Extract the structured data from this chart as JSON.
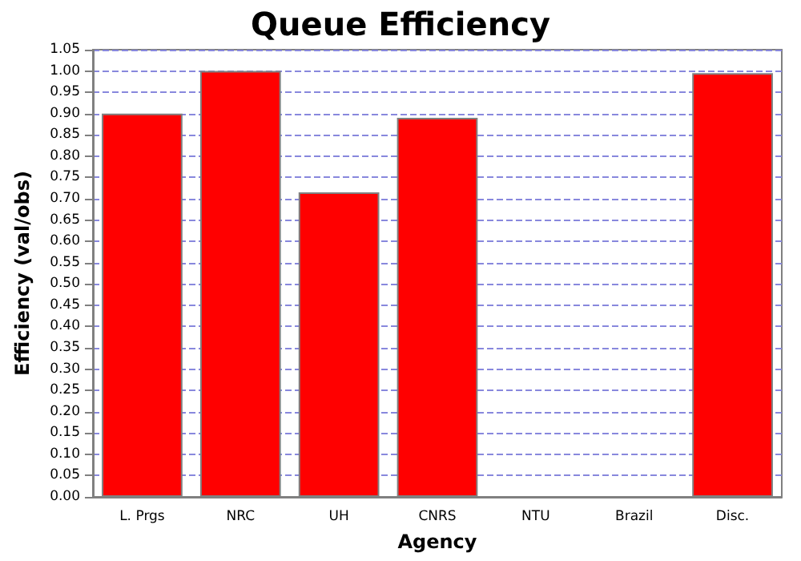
{
  "chart_data": {
    "type": "bar",
    "title": "Queue Efficiency",
    "xlabel": "Agency",
    "ylabel": "Efficiency (val/obs)",
    "categories": [
      "L. Prgs",
      "NRC",
      "UH",
      "CNRS",
      "NTU",
      "Brazil",
      "Disc."
    ],
    "values": [
      0.9,
      1.0,
      0.715,
      0.89,
      null,
      null,
      0.995
    ],
    "color": "#ff0000",
    "ylim": [
      0,
      1.05
    ],
    "yticks": [
      {
        "value": 0,
        "label": "0.00"
      },
      0.05,
      {
        "value": 0.1,
        "label": "0.10"
      },
      0.15,
      {
        "value": 0.2,
        "label": "0.20"
      },
      0.25,
      {
        "value": 0.3,
        "label": "0.30"
      },
      0.35,
      {
        "value": 0.4,
        "label": "0.40"
      },
      0.45,
      {
        "value": 0.5,
        "label": "0.50"
      },
      0.55,
      {
        "value": 0.6,
        "label": "0.60"
      },
      0.65,
      {
        "value": 0.7,
        "label": "0.70"
      },
      0.75,
      {
        "value": 0.8,
        "label": "0.80"
      },
      0.85,
      {
        "value": 0.9,
        "label": "0.90"
      },
      0.95,
      {
        "value": 1,
        "label": "1.00"
      },
      1.05
    ],
    "grid": "y"
  }
}
